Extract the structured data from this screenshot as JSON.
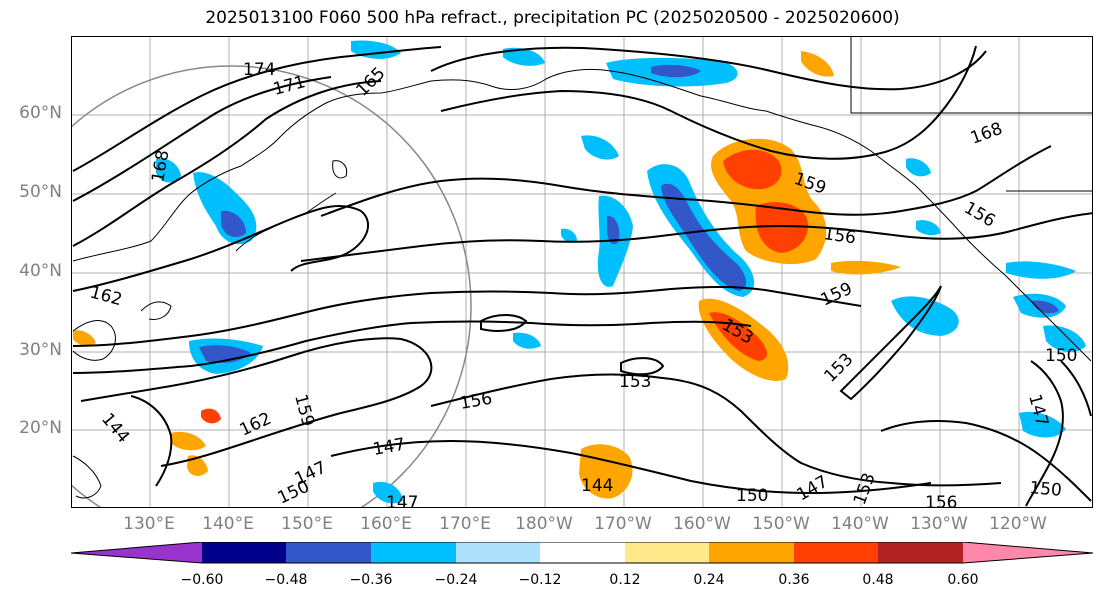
{
  "title": "2025013100 F060 500 hPa refract., precipitation PC (2025020500 - 2025020600)",
  "lat_labels": [
    "60°N",
    "50°N",
    "40°N",
    "30°N",
    "20°N"
  ],
  "lon_labels": [
    "130°E",
    "140°E",
    "150°E",
    "160°E",
    "170°E",
    "180°W",
    "170°W",
    "160°W",
    "150°W",
    "140°W",
    "130°W",
    "120°W"
  ],
  "contour_labels": [
    "174",
    "171",
    "165",
    "168",
    "162",
    "159",
    "156",
    "153",
    "147",
    "144",
    "150",
    "168",
    "159",
    "156",
    "159",
    "153",
    "153",
    "156",
    "162",
    "147",
    "150",
    "147",
    "144",
    "150",
    "147",
    "153",
    "156",
    "150",
    "147",
    "150",
    "147"
  ],
  "colorbar": {
    "colors": [
      "#9a33cc",
      "#00008b",
      "#3157c9",
      "#00bfff",
      "#aee2fc",
      "#ffffff",
      "#ffe98a",
      "#ffa500",
      "#ff4000",
      "#b22222",
      "#ff88aa"
    ],
    "ticks": [
      "−0.60",
      "−0.48",
      "−0.36",
      "−0.24",
      "−0.12",
      "0.12",
      "0.24",
      "0.36",
      "0.48",
      "0.60"
    ]
  }
}
